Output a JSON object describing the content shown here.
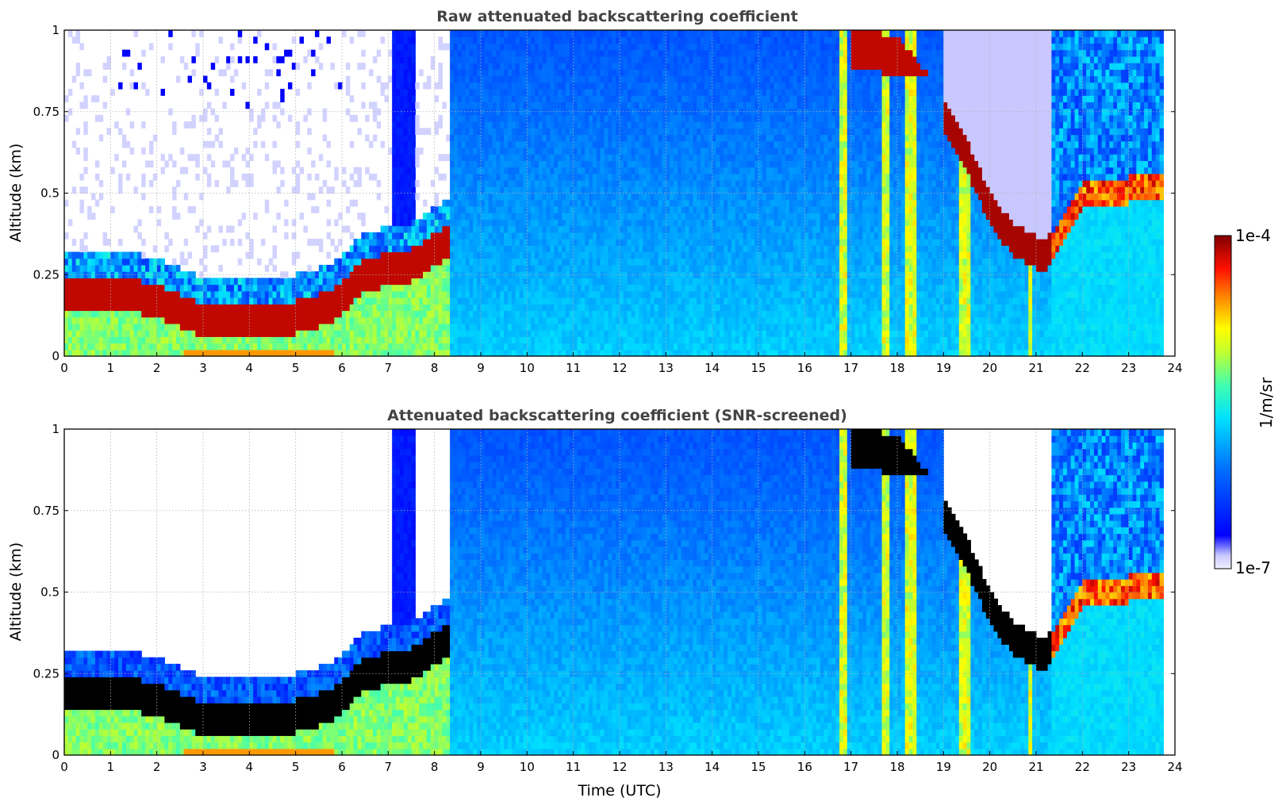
{
  "figure": {
    "xlabel": "Time (UTC)",
    "colorbar": {
      "label": "1/m/sr",
      "tick_top": "1e-4",
      "tick_bottom": "1e-7",
      "colormap": "jet",
      "scale": "log",
      "range": [
        1e-07,
        0.0001
      ]
    }
  },
  "chart_data": [
    {
      "type": "heatmap",
      "title": "Raw attenuated backscattering coefficient",
      "xlabel": "",
      "ylabel": "Altitude (km)",
      "xlim": [
        0,
        24
      ],
      "ylim": [
        0,
        1
      ],
      "xticks": [
        "0",
        "1",
        "2",
        "3",
        "4",
        "5",
        "6",
        "7",
        "8",
        "9",
        "10",
        "11",
        "12",
        "13",
        "14",
        "15",
        "16",
        "17",
        "18",
        "19",
        "20",
        "21",
        "22",
        "23",
        "24"
      ],
      "yticks": [
        "0",
        "0.25",
        "0.5",
        "0.75",
        "1"
      ],
      "grid": true,
      "screened": false,
      "aerosol_layer_top_km": [
        [
          0,
          0.24
        ],
        [
          1,
          0.25
        ],
        [
          2,
          0.22
        ],
        [
          3,
          0.16
        ],
        [
          4,
          0.15
        ],
        [
          5,
          0.17
        ],
        [
          5.8,
          0.2
        ],
        [
          6.5,
          0.3
        ],
        [
          7.5,
          0.33
        ],
        [
          8.3,
          0.4
        ],
        [
          17,
          0.95
        ],
        [
          18,
          0.92
        ],
        [
          19,
          0.75
        ],
        [
          19.5,
          0.62
        ],
        [
          20,
          0.45
        ],
        [
          20.5,
          0.36
        ],
        [
          21.2,
          0.3
        ],
        [
          22,
          0.5
        ],
        [
          23,
          0.52
        ],
        [
          23.7,
          0.52
        ]
      ]
    },
    {
      "type": "heatmap",
      "title": "Attenuated backscattering coefficient (SNR-screened)",
      "xlabel": "Time (UTC)",
      "ylabel": "Altitude (km)",
      "xlim": [
        0,
        24
      ],
      "ylim": [
        0,
        1
      ],
      "xticks": [
        "0",
        "1",
        "2",
        "3",
        "4",
        "5",
        "6",
        "7",
        "8",
        "9",
        "10",
        "11",
        "12",
        "13",
        "14",
        "15",
        "16",
        "17",
        "18",
        "19",
        "20",
        "21",
        "22",
        "23",
        "24"
      ],
      "yticks": [
        "0",
        "0.25",
        "0.5",
        "0.75",
        "1"
      ],
      "grid": true,
      "screened": true
    }
  ]
}
